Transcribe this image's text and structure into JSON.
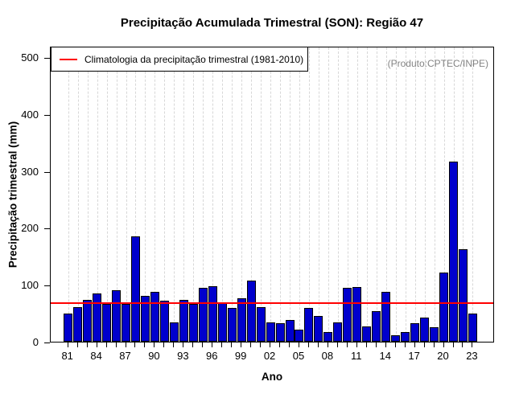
{
  "title": "Precipitação Acumulada Trimestral (SON): Região 47",
  "annotation": "(Produto:CPTEC/INPE)",
  "legend": {
    "label": "Climatologia da precipitação trimestral (1981-2010)",
    "line_color": "#FF0000"
  },
  "axes": {
    "xlabel": "Ano",
    "ylabel": "Precipitação trimestral (mm)"
  },
  "chart_data": {
    "type": "bar",
    "title": "Precipitação Acumulada Trimestral (SON): Região 47",
    "xlabel": "Ano",
    "ylabel": "Precipitação trimestral (mm)",
    "ylim": [
      0,
      520
    ],
    "yticks": [
      0,
      100,
      200,
      300,
      400,
      500
    ],
    "x_tick_label_every": 3,
    "x_tick_labels_shown": [
      "81",
      "84",
      "87",
      "90",
      "93",
      "96",
      "99",
      "02",
      "05",
      "08",
      "11",
      "14",
      "17",
      "20",
      "23"
    ],
    "years": [
      1981,
      1982,
      1983,
      1984,
      1985,
      1986,
      1987,
      1988,
      1989,
      1990,
      1991,
      1992,
      1993,
      1994,
      1995,
      1996,
      1997,
      1998,
      1999,
      2000,
      2001,
      2002,
      2003,
      2004,
      2005,
      2006,
      2007,
      2008,
      2009,
      2010,
      2011,
      2012,
      2013,
      2014,
      2015,
      2016,
      2017,
      2018,
      2019,
      2020,
      2021,
      2022,
      2023
    ],
    "values": [
      50,
      61,
      74,
      85,
      66,
      90,
      67,
      185,
      80,
      87,
      72,
      34,
      73,
      67,
      95,
      97,
      68,
      59,
      77,
      107,
      61,
      34,
      32,
      38,
      21,
      60,
      45,
      17,
      34,
      95,
      96,
      27,
      53,
      87,
      12,
      17,
      33,
      43,
      26,
      122,
      316,
      162,
      50
    ],
    "climatology_value": 68,
    "legend_label": "Climatologia da precipitação trimestral (1981-2010)",
    "annotation": "(Produto:CPTEC/INPE)",
    "bar_color": "#0000CD",
    "bar_border_color": "#000000",
    "line_color": "#FF0000",
    "grid": {
      "vertical_dashed": true,
      "color": "#d7d7d7",
      "horizontal": false
    },
    "legend_position": "top-left",
    "background": "#ffffff"
  }
}
